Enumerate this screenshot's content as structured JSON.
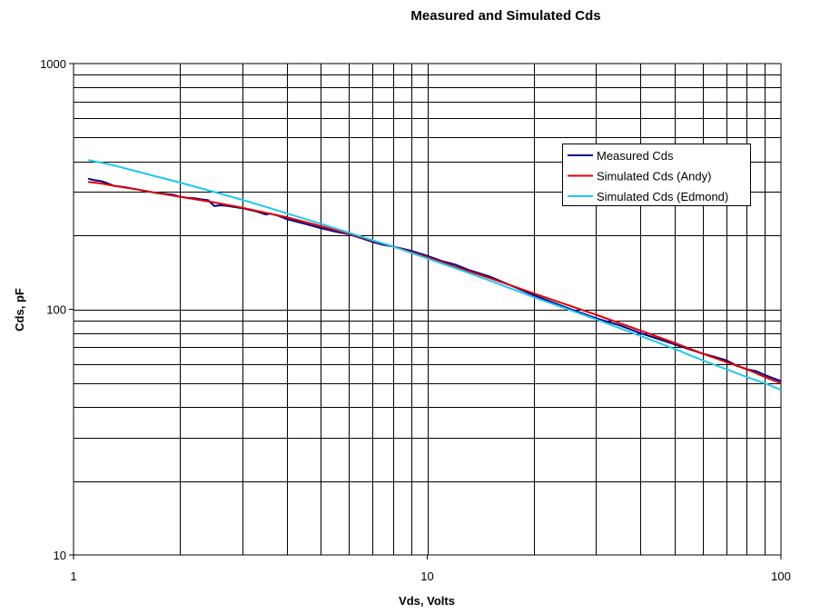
{
  "chart_data": {
    "type": "line",
    "title": "Measured and Simulated Cds",
    "xlabel": "Vds, Volts",
    "ylabel": "Cds, pF",
    "xscale": "log",
    "yscale": "log",
    "xlim": [
      1,
      100
    ],
    "ylim": [
      10,
      1000
    ],
    "x_tick_labels": [
      "1",
      "10",
      "100"
    ],
    "y_tick_labels": [
      "10",
      "100",
      "1000"
    ],
    "grid": true,
    "legend_position": "right",
    "series": [
      {
        "name": "Measured Cds",
        "color": "#00008B",
        "x": [
          1.1,
          1.15,
          1.2,
          1.25,
          1.3,
          1.4,
          1.5,
          1.6,
          1.7,
          1.8,
          1.9,
          2.0,
          2.1,
          2.2,
          2.3,
          2.4,
          2.5,
          2.6,
          2.7,
          3.0,
          3.3,
          3.5,
          3.6,
          3.8,
          4.0,
          4.5,
          5.0,
          5.5,
          6.0,
          6.5,
          7.0,
          7.5,
          8.0,
          9.0,
          10.0,
          11.0,
          12.0,
          13.0,
          15.0,
          17.0,
          20.0,
          25.0,
          30.0,
          35.0,
          40.0,
          50.0,
          60.0,
          65.0,
          70.0,
          75.0,
          80.0,
          85.0,
          90.0,
          100.0
        ],
        "y": [
          340,
          335,
          332,
          325,
          318,
          314,
          308,
          303,
          298,
          295,
          293,
          287,
          284,
          283,
          280,
          278,
          263,
          265,
          264,
          258,
          250,
          243,
          245,
          240,
          233,
          223,
          214,
          207,
          202,
          195,
          188,
          183,
          180,
          173,
          165,
          157,
          152,
          145,
          136,
          126,
          114,
          101,
          92,
          86,
          80,
          72,
          66,
          64,
          62,
          59,
          57,
          56,
          54,
          51
        ]
      },
      {
        "name": "Simulated Cds (Andy)",
        "color": "#E00000",
        "x": [
          1.1,
          1.2,
          1.3,
          1.5,
          1.7,
          2.0,
          2.5,
          3.0,
          3.5,
          4.0,
          5.0,
          6.0,
          7.0,
          8.0,
          9.0,
          10.0,
          12.0,
          15.0,
          20.0,
          25.0,
          30.0,
          40.0,
          50.0,
          60.0,
          70.0,
          80.0,
          90.0,
          100.0
        ],
        "y": [
          330,
          325,
          318,
          308,
          298,
          287,
          272,
          259,
          247,
          237,
          218,
          203,
          190,
          180,
          171,
          163,
          149,
          134,
          116,
          104,
          95,
          82,
          73,
          66,
          61,
          57,
          53,
          50
        ]
      },
      {
        "name": "Simulated Cds (Edmond)",
        "color": "#1EC8F0",
        "x": [
          1.1,
          1.2,
          1.3,
          1.5,
          1.7,
          2.0,
          2.5,
          3.0,
          3.5,
          4.0,
          5.0,
          6.0,
          7.0,
          8.0,
          10.0,
          12.0,
          15.0,
          20.0,
          25.0,
          30.0,
          40.0,
          50.0,
          60.0,
          70.0,
          80.0,
          90.0,
          100.0
        ],
        "y": [
          405,
          395,
          385,
          365,
          348,
          328,
          300,
          279,
          261,
          246,
          223,
          205,
          191,
          180,
          161,
          147,
          131,
          112,
          100,
          91,
          78,
          69,
          62,
          57,
          53,
          50,
          47
        ]
      }
    ]
  }
}
